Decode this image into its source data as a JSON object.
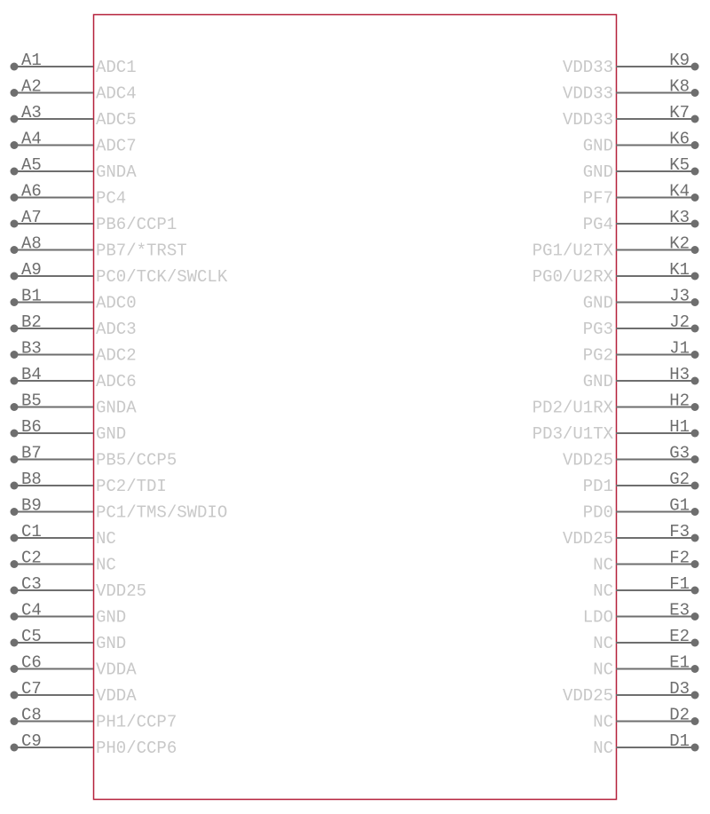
{
  "left_pins": [
    {
      "number": "A1",
      "name": "ADC1"
    },
    {
      "number": "A2",
      "name": "ADC4"
    },
    {
      "number": "A3",
      "name": "ADC5"
    },
    {
      "number": "A4",
      "name": "ADC7"
    },
    {
      "number": "A5",
      "name": "GNDA"
    },
    {
      "number": "A6",
      "name": "PC4"
    },
    {
      "number": "A7",
      "name": "PB6/CCP1"
    },
    {
      "number": "A8",
      "name": "PB7/*TRST"
    },
    {
      "number": "A9",
      "name": "PC0/TCK/SWCLK"
    },
    {
      "number": "B1",
      "name": "ADC0"
    },
    {
      "number": "B2",
      "name": "ADC3"
    },
    {
      "number": "B3",
      "name": "ADC2"
    },
    {
      "number": "B4",
      "name": "ADC6"
    },
    {
      "number": "B5",
      "name": "GNDA"
    },
    {
      "number": "B6",
      "name": "GND"
    },
    {
      "number": "B7",
      "name": "PB5/CCP5"
    },
    {
      "number": "B8",
      "name": "PC2/TDI"
    },
    {
      "number": "B9",
      "name": "PC1/TMS/SWDIO"
    },
    {
      "number": "C1",
      "name": "NC"
    },
    {
      "number": "C2",
      "name": "NC"
    },
    {
      "number": "C3",
      "name": "VDD25"
    },
    {
      "number": "C4",
      "name": "GND"
    },
    {
      "number": "C5",
      "name": "GND"
    },
    {
      "number": "C6",
      "name": "VDDA"
    },
    {
      "number": "C7",
      "name": "VDDA"
    },
    {
      "number": "C8",
      "name": "PH1/CCP7"
    },
    {
      "number": "C9",
      "name": "PH0/CCP6"
    }
  ],
  "right_pins": [
    {
      "number": "K9",
      "name": "VDD33"
    },
    {
      "number": "K8",
      "name": "VDD33"
    },
    {
      "number": "K7",
      "name": "VDD33"
    },
    {
      "number": "K6",
      "name": "GND"
    },
    {
      "number": "K5",
      "name": "GND"
    },
    {
      "number": "K4",
      "name": "PF7"
    },
    {
      "number": "K3",
      "name": "PG4"
    },
    {
      "number": "K2",
      "name": "PG1/U2TX"
    },
    {
      "number": "K1",
      "name": "PG0/U2RX"
    },
    {
      "number": "J3",
      "name": "GND"
    },
    {
      "number": "J2",
      "name": "PG3"
    },
    {
      "number": "J1",
      "name": "PG2"
    },
    {
      "number": "H3",
      "name": "GND"
    },
    {
      "number": "H2",
      "name": "PD2/U1RX"
    },
    {
      "number": "H1",
      "name": "PD3/U1TX"
    },
    {
      "number": "G3",
      "name": "VDD25"
    },
    {
      "number": "G2",
      "name": "PD1"
    },
    {
      "number": "G1",
      "name": "PD0"
    },
    {
      "number": "F3",
      "name": "VDD25"
    },
    {
      "number": "F2",
      "name": "NC"
    },
    {
      "number": "F1",
      "name": "NC"
    },
    {
      "number": "E3",
      "name": "LDO"
    },
    {
      "number": "E2",
      "name": "NC"
    },
    {
      "number": "E1",
      "name": "NC"
    },
    {
      "number": "D3",
      "name": "VDD25"
    },
    {
      "number": "D2",
      "name": "NC"
    },
    {
      "number": "D1",
      "name": "NC"
    }
  ]
}
